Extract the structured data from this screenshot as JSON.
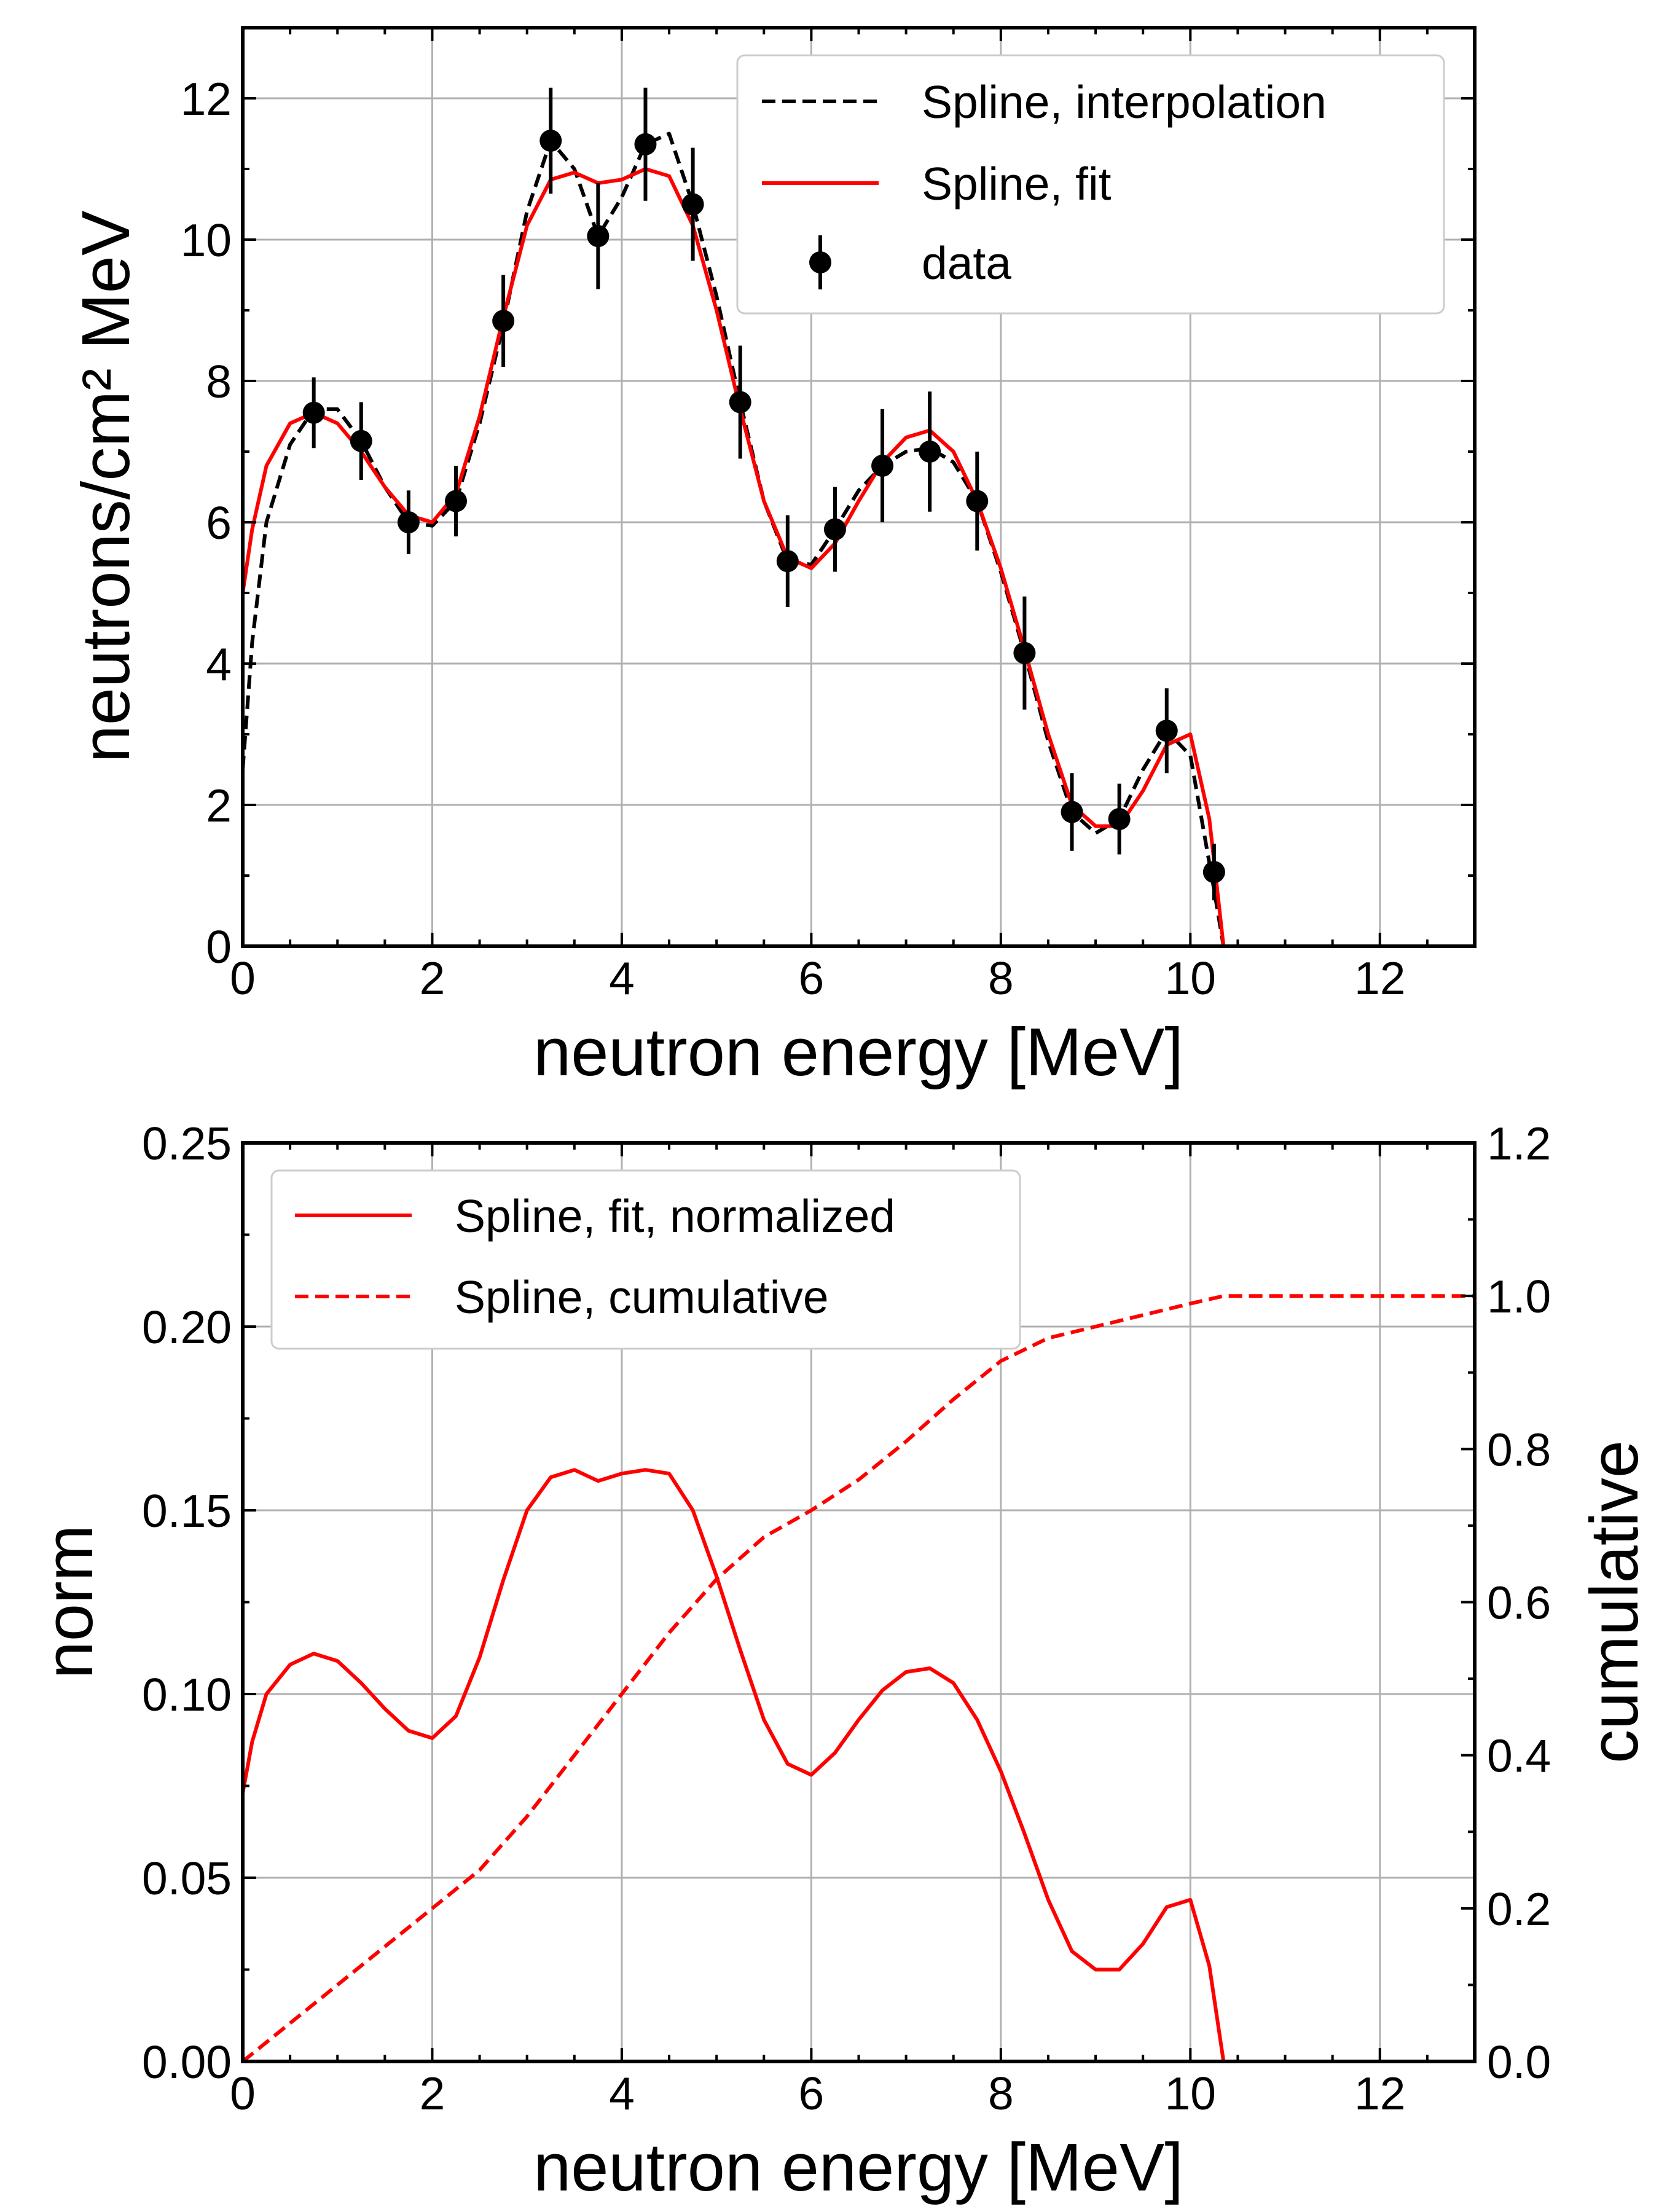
{
  "chart_data": [
    {
      "type": "line",
      "xlabel": "neutron energy [MeV]",
      "ylabel": "neutrons/cm² MeV",
      "xlim": [
        0,
        13
      ],
      "ylim": [
        0,
        13
      ],
      "xticks": [
        "0",
        "2",
        "4",
        "6",
        "8",
        "10",
        "12"
      ],
      "yticks": [
        "0",
        "2",
        "4",
        "6",
        "8",
        "10",
        "12"
      ],
      "grid": true,
      "legend_position": "top-right",
      "series": [
        {
          "name": "Spline, interpolation",
          "style": "dashed",
          "color": "#000000",
          "x": [
            0.0,
            0.1,
            0.25,
            0.5,
            0.75,
            1.0,
            1.25,
            1.5,
            1.75,
            2.0,
            2.25,
            2.5,
            2.75,
            3.0,
            3.25,
            3.5,
            3.75,
            4.0,
            4.25,
            4.5,
            4.75,
            5.0,
            5.25,
            5.5,
            5.75,
            6.0,
            6.25,
            6.5,
            6.75,
            7.0,
            7.25,
            7.5,
            7.75,
            8.0,
            8.25,
            8.5,
            8.75,
            9.0,
            9.25,
            9.5,
            9.75,
            10.0,
            10.25,
            10.35
          ],
          "y": [
            2.5,
            4.3,
            6.0,
            7.1,
            7.6,
            7.6,
            7.15,
            6.5,
            6.0,
            5.95,
            6.3,
            7.4,
            8.8,
            10.4,
            11.4,
            11.0,
            10.05,
            10.6,
            11.35,
            11.5,
            10.5,
            9.2,
            7.7,
            6.3,
            5.45,
            5.4,
            5.9,
            6.45,
            6.8,
            7.0,
            7.05,
            6.85,
            6.3,
            5.3,
            4.15,
            2.9,
            1.9,
            1.6,
            1.8,
            2.5,
            3.05,
            2.7,
            0.8,
            0.0
          ]
        },
        {
          "name": "Spline, fit",
          "style": "solid",
          "color": "#ff0000",
          "x": [
            0.0,
            0.1,
            0.25,
            0.5,
            0.75,
            1.0,
            1.25,
            1.5,
            1.75,
            2.0,
            2.25,
            2.5,
            2.75,
            3.0,
            3.25,
            3.5,
            3.75,
            4.0,
            4.25,
            4.5,
            4.75,
            5.0,
            5.25,
            5.5,
            5.75,
            6.0,
            6.25,
            6.5,
            6.75,
            7.0,
            7.25,
            7.5,
            7.75,
            8.0,
            8.25,
            8.5,
            8.75,
            9.0,
            9.25,
            9.5,
            9.75,
            10.0,
            10.2,
            10.35
          ],
          "y": [
            5.0,
            5.9,
            6.8,
            7.4,
            7.55,
            7.4,
            7.0,
            6.5,
            6.1,
            6.0,
            6.4,
            7.5,
            8.9,
            10.2,
            10.85,
            10.95,
            10.8,
            10.85,
            11.0,
            10.9,
            10.2,
            9.0,
            7.6,
            6.3,
            5.5,
            5.35,
            5.7,
            6.3,
            6.85,
            7.2,
            7.3,
            7.0,
            6.3,
            5.35,
            4.2,
            3.0,
            2.0,
            1.7,
            1.7,
            2.2,
            2.85,
            3.0,
            1.8,
            0.0
          ]
        },
        {
          "name": "data",
          "style": "errorbar",
          "color": "#000000",
          "x": [
            0.75,
            1.25,
            1.75,
            2.25,
            2.75,
            3.25,
            3.75,
            4.25,
            4.75,
            5.25,
            5.75,
            6.25,
            6.75,
            7.25,
            7.75,
            8.25,
            8.75,
            9.25,
            9.75,
            10.25
          ],
          "y": [
            7.55,
            7.15,
            6.0,
            6.3,
            8.85,
            11.4,
            10.05,
            11.35,
            10.5,
            7.7,
            5.45,
            5.9,
            6.8,
            7.0,
            6.3,
            4.15,
            1.9,
            1.8,
            3.05,
            1.05
          ],
          "yerr": [
            0.5,
            0.55,
            0.45,
            0.5,
            0.65,
            0.75,
            0.75,
            0.8,
            0.8,
            0.8,
            0.65,
            0.6,
            0.8,
            0.85,
            0.7,
            0.8,
            0.55,
            0.5,
            0.6,
            0.4
          ]
        }
      ]
    },
    {
      "type": "line",
      "xlabel": "neutron energy [MeV]",
      "ylabel": "norm",
      "y2label": "cumulative",
      "xlim": [
        0,
        13
      ],
      "ylim": [
        0,
        0.25
      ],
      "y2lim": [
        0,
        1.2
      ],
      "xticks": [
        "0",
        "2",
        "4",
        "6",
        "8",
        "10",
        "12"
      ],
      "yticks": [
        "0.00",
        "0.05",
        "0.10",
        "0.15",
        "0.20",
        "0.25"
      ],
      "y2ticks": [
        "0.0",
        "0.2",
        "0.4",
        "0.6",
        "0.8",
        "1.0",
        "1.2"
      ],
      "grid": true,
      "legend_position": "top-left",
      "series": [
        {
          "name": "Spline, fit, normalized",
          "style": "solid",
          "color": "#ff0000",
          "axis": "left",
          "x": [
            0.0,
            0.1,
            0.25,
            0.5,
            0.75,
            1.0,
            1.25,
            1.5,
            1.75,
            2.0,
            2.25,
            2.5,
            2.75,
            3.0,
            3.25,
            3.5,
            3.75,
            4.0,
            4.25,
            4.5,
            4.75,
            5.0,
            5.25,
            5.5,
            5.75,
            6.0,
            6.25,
            6.5,
            6.75,
            7.0,
            7.25,
            7.5,
            7.75,
            8.0,
            8.25,
            8.5,
            8.75,
            9.0,
            9.25,
            9.5,
            9.75,
            10.0,
            10.2,
            10.35
          ],
          "y": [
            0.073,
            0.087,
            0.1,
            0.108,
            0.111,
            0.109,
            0.103,
            0.096,
            0.09,
            0.088,
            0.094,
            0.11,
            0.131,
            0.15,
            0.159,
            0.161,
            0.158,
            0.16,
            0.161,
            0.16,
            0.15,
            0.132,
            0.112,
            0.093,
            0.081,
            0.078,
            0.084,
            0.093,
            0.101,
            0.106,
            0.107,
            0.103,
            0.093,
            0.079,
            0.062,
            0.044,
            0.03,
            0.025,
            0.025,
            0.032,
            0.042,
            0.044,
            0.026,
            0.0
          ]
        },
        {
          "name": "Spline, cumulative",
          "style": "dashed",
          "color": "#ff0000",
          "axis": "right",
          "x": [
            0.0,
            0.5,
            1.0,
            1.5,
            2.0,
            2.5,
            3.0,
            3.5,
            4.0,
            4.5,
            5.0,
            5.5,
            6.0,
            6.5,
            7.0,
            7.5,
            8.0,
            8.5,
            9.0,
            9.5,
            10.0,
            10.35,
            10.5,
            11.0,
            12.0,
            13.0
          ],
          "y": [
            0.0,
            0.05,
            0.1,
            0.15,
            0.2,
            0.25,
            0.32,
            0.4,
            0.48,
            0.56,
            0.63,
            0.685,
            0.72,
            0.76,
            0.81,
            0.865,
            0.915,
            0.945,
            0.96,
            0.975,
            0.99,
            1.0,
            1.0,
            1.0,
            1.0,
            1.0
          ]
        }
      ]
    }
  ]
}
